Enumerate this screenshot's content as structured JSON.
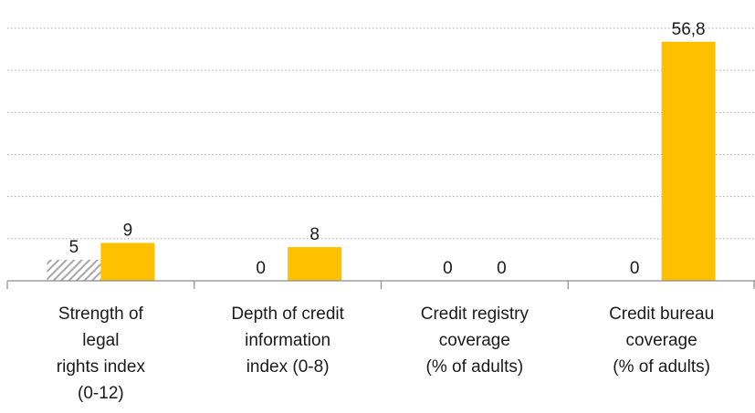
{
  "chart_data": {
    "type": "bar",
    "categories": [
      [
        "Strength of",
        "legal",
        "rights index",
        "(0-12)"
      ],
      [
        "Depth of credit",
        "information",
        "index (0-8)"
      ],
      [
        "Credit registry",
        "coverage",
        "(% of adults)"
      ],
      [
        "Credit bureau",
        "coverage",
        "(% of adults)"
      ]
    ],
    "series": [
      {
        "values": [
          5,
          0,
          0,
          0
        ],
        "value_labels": [
          "5",
          "0",
          "0",
          "0"
        ],
        "color": "#a6a6a6",
        "pattern": "hatched"
      },
      {
        "values": [
          9,
          8,
          0,
          56.8
        ],
        "value_labels": [
          "9",
          "8",
          "0",
          "56,8"
        ],
        "color": "#ffc000",
        "pattern": "solid"
      }
    ],
    "ylim": [
      0,
      60
    ],
    "y_gridline_step": 10,
    "grid": true,
    "grid_style": "dotted",
    "legend": "none",
    "title": "",
    "xlabel": "",
    "ylabel": ""
  }
}
